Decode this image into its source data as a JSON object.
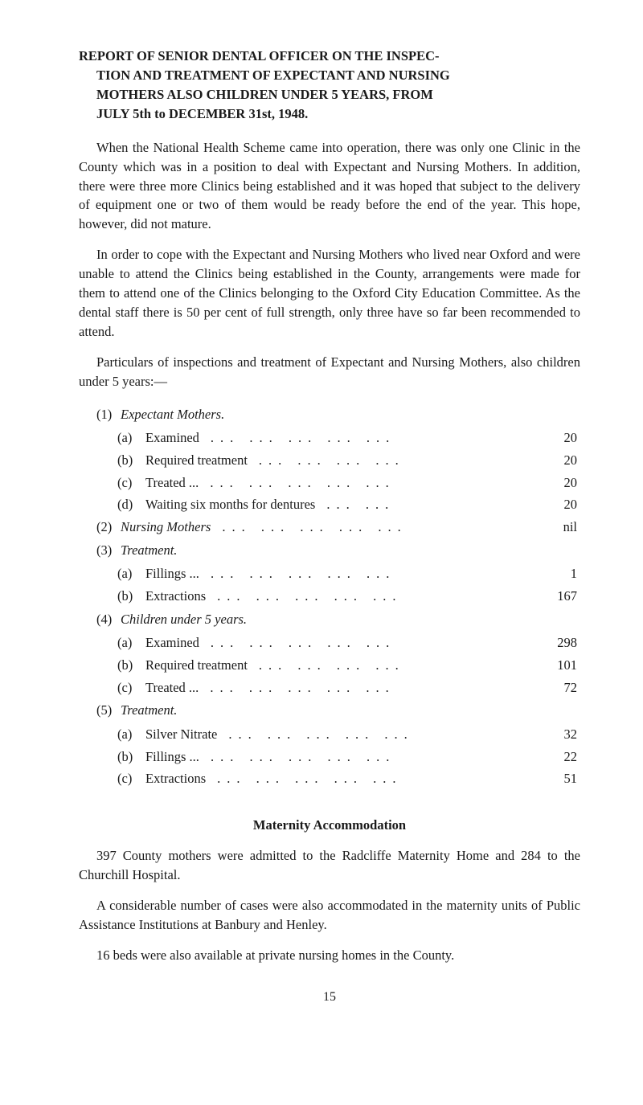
{
  "title": {
    "line1": "REPORT OF SENIOR DENTAL OFFICER ON THE INSPEC-",
    "line2": "TION AND TREATMENT OF EXPECTANT AND NURSING",
    "line3": "MOTHERS ALSO CHILDREN UNDER 5 YEARS, FROM",
    "line4": "JULY 5th to DECEMBER 31st, 1948."
  },
  "paras": {
    "p1": "When the National Health Scheme came into operation, there was only one Clinic in the County which was in a position to deal with Expectant and Nursing Mothers. In addition, there were three more Clinics being established and it was hoped that subject to the delivery of equipment one or two of them would be ready before the end of the year. This hope, however, did not mature.",
    "p2": "In order to cope with the Expectant and Nursing Mothers who lived near Oxford and were unable to attend the Clinics being established in the County, arrangements were made for them to attend one of the Clinics belonging to the Oxford City Education Committee. As the dental staff there is 50 per cent of full strength, only three have so far been recommended to attend.",
    "p3": "Particulars of inspections and treatment of Expectant and Nursing Mothers, also children under 5 years:—"
  },
  "groups": {
    "g1": {
      "num": "(1)",
      "head": "Expectant Mothers."
    },
    "g1a": {
      "mark": "(a)",
      "label": "Examined",
      "dots": "...   ...   ...   ...   ...",
      "val": "20"
    },
    "g1b": {
      "mark": "(b)",
      "label": "Required treatment",
      "dots": "...   ...   ...   ...",
      "val": "20"
    },
    "g1c": {
      "mark": "(c)",
      "label": "Treated ...",
      "dots": "...   ...   ...   ...   ...",
      "val": "20"
    },
    "g1d": {
      "mark": "(d)",
      "label": "Waiting six months for dentures",
      "dots": "...   ...",
      "val": "20"
    },
    "g2": {
      "num": "(2)",
      "head": "Nursing Mothers",
      "dots": "...   ...   ...   ...   ...",
      "val": "nil"
    },
    "g3": {
      "num": "(3)",
      "head": "Treatment."
    },
    "g3a": {
      "mark": "(a)",
      "label": "Fillings ...",
      "dots": "...   ...   ...   ...   ...",
      "val": "1"
    },
    "g3b": {
      "mark": "(b)",
      "label": "Extractions",
      "dots": "...   ...   ...   ...   ...",
      "val": "167"
    },
    "g4": {
      "num": "(4)",
      "head": "Children under 5 years."
    },
    "g4a": {
      "mark": "(a)",
      "label": "Examined",
      "dots": "...   ...   ...   ...   ...",
      "val": "298"
    },
    "g4b": {
      "mark": "(b)",
      "label": "Required treatment",
      "dots": "...   ...   ...   ...",
      "val": "101"
    },
    "g4c": {
      "mark": "(c)",
      "label": "Treated ...",
      "dots": "...   ...   ...   ...   ...",
      "val": "72"
    },
    "g5": {
      "num": "(5)",
      "head": "Treatment."
    },
    "g5a": {
      "mark": "(a)",
      "label": "Silver Nitrate",
      "dots": "...   ...   ...   ...   ...",
      "val": "32"
    },
    "g5b": {
      "mark": "(b)",
      "label": "Fillings ...",
      "dots": "...   ...   ...   ...   ...",
      "val": "22"
    },
    "g5c": {
      "mark": "(c)",
      "label": "Extractions",
      "dots": "...   ...   ...   ...   ...",
      "val": "51"
    }
  },
  "maternity": {
    "heading": "Maternity Accommodation",
    "p1": "397 County mothers were admitted to the Radcliffe Maternity Home and 284 to the Churchill Hospital.",
    "p2": "A considerable number of cases were also accommodated in the maternity units of Public Assistance Institutions at Banbury and Henley.",
    "p3": "16 beds were also available at private nursing homes in the County."
  },
  "pageNumber": "15"
}
